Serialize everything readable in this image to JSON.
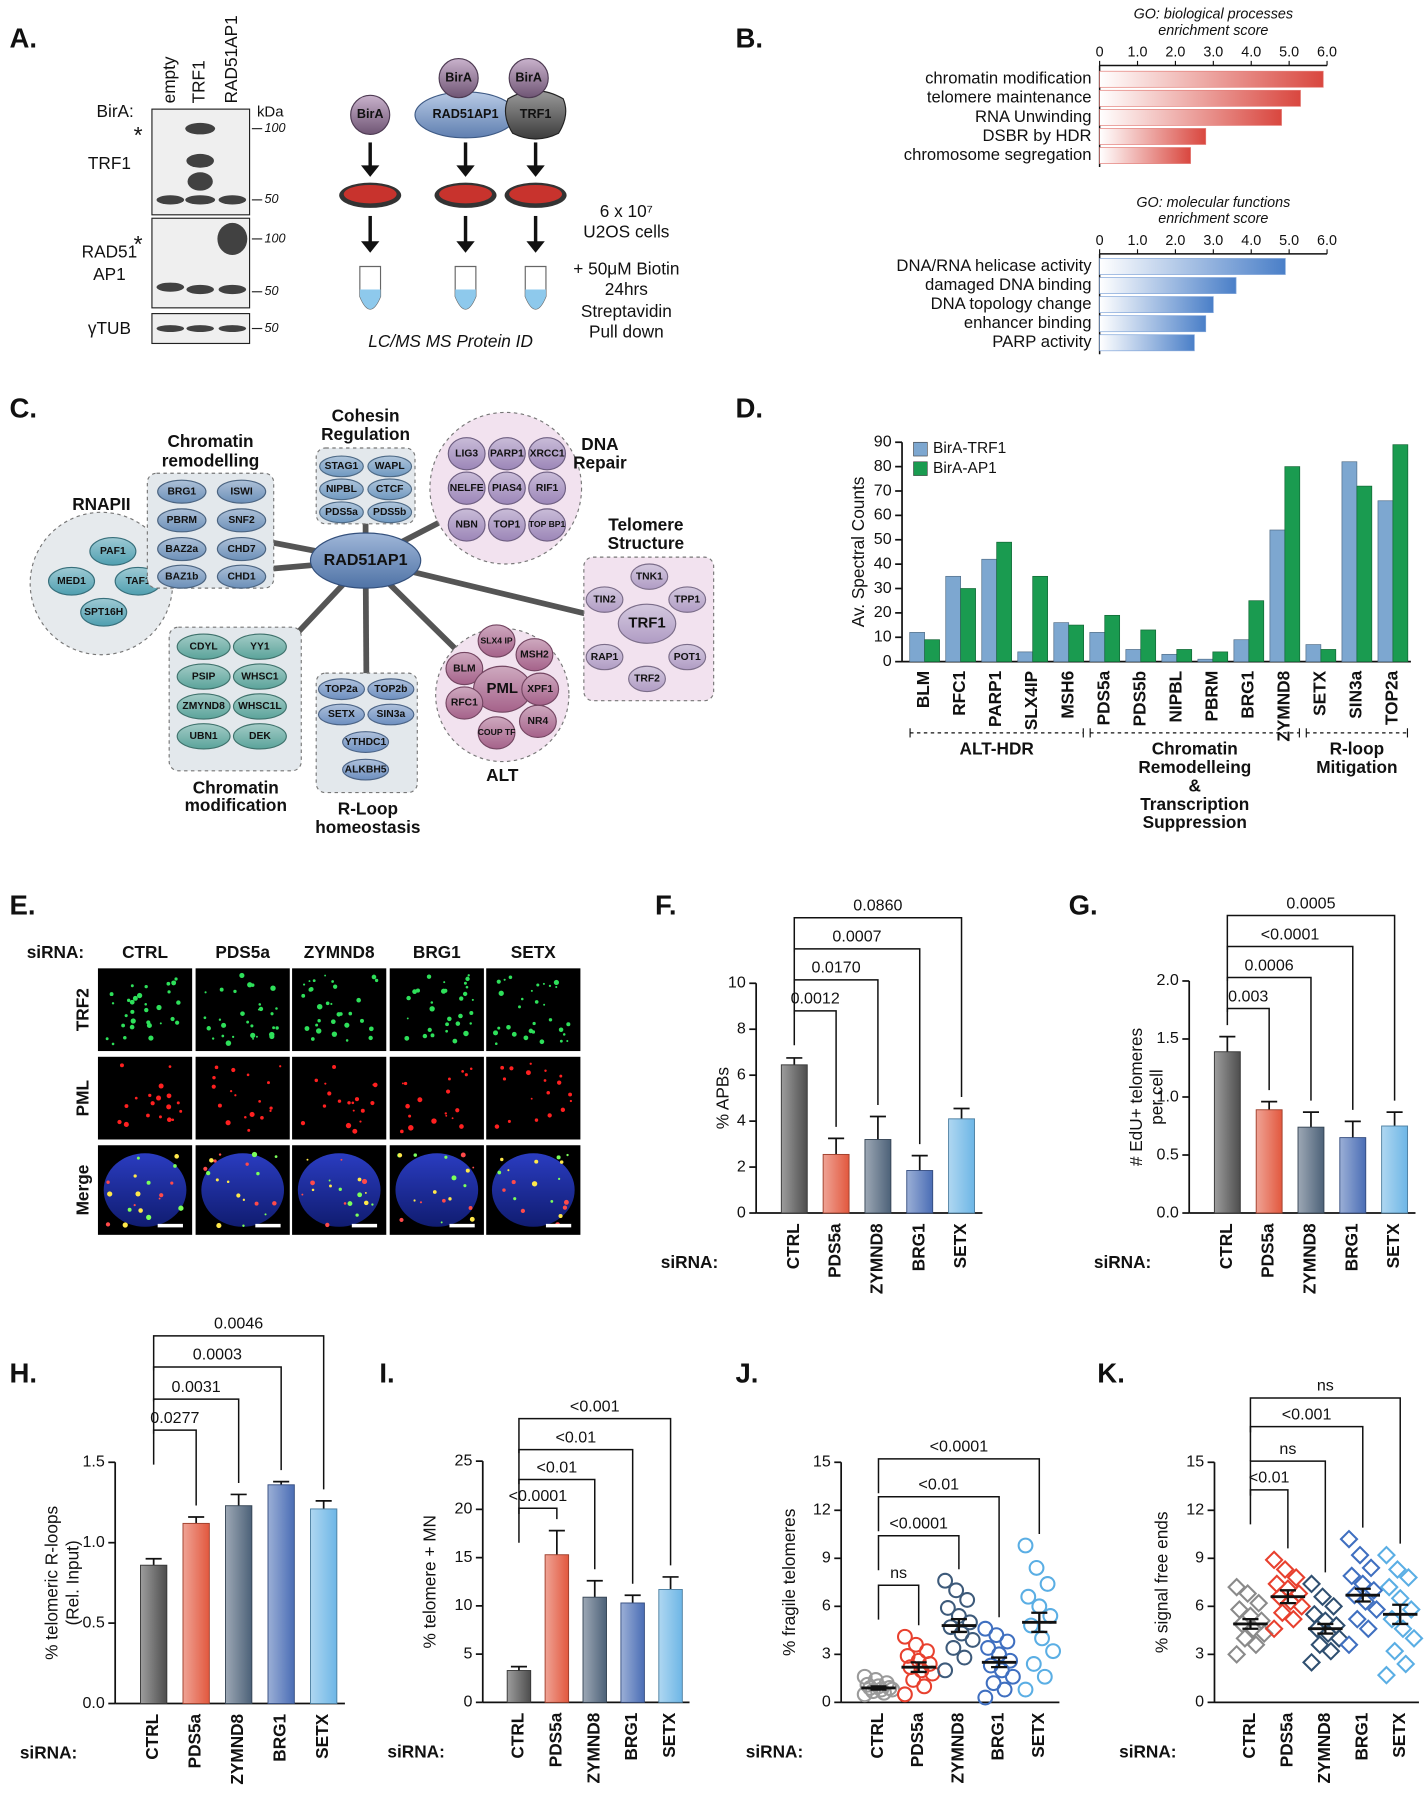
{
  "panel_labels": [
    "A.",
    "B.",
    "C.",
    "D.",
    "E.",
    "F.",
    "G.",
    "H.",
    "I.",
    "J.",
    "K."
  ],
  "blot": {
    "bait_label": "BirA:",
    "lanes": [
      "empty",
      "TRF1",
      "RAD51AP1"
    ],
    "unit": "kDa",
    "strips": [
      {
        "label": [
          "TRF1"
        ],
        "asterisk": "*",
        "markers": [
          100,
          50
        ]
      },
      {
        "label": [
          "RAD51",
          "AP1"
        ],
        "asterisk": "*",
        "markers": [
          100,
          50
        ]
      },
      {
        "label": [
          "γTUB"
        ],
        "markers": [
          50
        ]
      }
    ]
  },
  "schematic": {
    "baits": [
      {
        "tag": "BirA"
      },
      {
        "tag": "BirA",
        "fusion": "RAD51AP1"
      },
      {
        "tag": "BirA",
        "fusion": "TRF1"
      }
    ],
    "steps": [
      [
        "6 x 10⁷",
        "U2OS cells"
      ],
      [
        "+ 50μM Biotin",
        "24hrs"
      ],
      [
        "Streptavidin",
        "Pull down"
      ]
    ],
    "readout": "LC/MS MS Protein ID"
  },
  "network": {
    "center": "RAD51AP1",
    "highlight_color": "#e3262b",
    "groups": [
      {
        "title": [
          "RNAPII"
        ],
        "color": "#4f9fb0",
        "nodes": [
          {
            "label": "PAF1"
          },
          {
            "label": "MED1"
          },
          {
            "label": "TAF1"
          },
          {
            "label": "SPT16H"
          }
        ]
      },
      {
        "title": [
          "Chromatin",
          "remodelling"
        ],
        "color": "#6b8fb8",
        "nodes": [
          {
            "label": "BRG1",
            "highlight": true
          },
          {
            "label": "ISWI",
            "highlight": true
          },
          {
            "label": "PBRM",
            "highlight": true
          },
          {
            "label": "SNF2",
            "highlight": true
          },
          {
            "label": "BAZ2a",
            "highlight": true
          },
          {
            "label": "CHD7",
            "highlight": true
          },
          {
            "label": "BAZ1b",
            "highlight": true
          },
          {
            "label": "CHD1",
            "highlight": true
          }
        ]
      },
      {
        "title": [
          "Cohesin",
          "Regulation"
        ],
        "color": "#6f98c0",
        "nodes": [
          {
            "label": "STAG1"
          },
          {
            "label": "WAPL",
            "highlight": true
          },
          {
            "label": "NIPBL",
            "highlight": true
          },
          {
            "label": "CTCF",
            "highlight": true
          },
          {
            "label": "PDS5a",
            "highlight": true
          },
          {
            "label": "PDS5b",
            "highlight": true
          }
        ]
      },
      {
        "title": [
          "DNA",
          "Repair"
        ],
        "color": "#9c86b8",
        "nodes": [
          {
            "label": "LIG3"
          },
          {
            "label": "PARP1",
            "highlight": true
          },
          {
            "label": "XRCC1"
          },
          {
            "label": "NELFE",
            "highlight": true
          },
          {
            "label": "PIAS4"
          },
          {
            "label": "RIF1"
          },
          {
            "label": "NBN"
          },
          {
            "label": "TOP1"
          },
          {
            "label": "TOP BP1"
          }
        ]
      },
      {
        "title": [
          "Telomere",
          "Structure"
        ],
        "color": "#b09cc4",
        "nodes": [
          {
            "label": "TNK1"
          },
          {
            "label": "TIN2"
          },
          {
            "label": "TPP1"
          },
          {
            "label": "TRF1"
          },
          {
            "label": "RAP1"
          },
          {
            "label": "POT1"
          },
          {
            "label": "TRF2"
          }
        ]
      },
      {
        "title": [
          "Chromatin",
          "modification"
        ],
        "color": "#5aa39a",
        "nodes": [
          {
            "label": "CDYL",
            "highlight": true
          },
          {
            "label": "YY1"
          },
          {
            "label": "PSIP",
            "highlight": true
          },
          {
            "label": "WHSC1"
          },
          {
            "label": "ZMYND8",
            "highlight": true
          },
          {
            "label": "WHSC1L"
          },
          {
            "label": "UBN1"
          },
          {
            "label": "DEK"
          }
        ]
      },
      {
        "title": [
          "R-Loop",
          "homeostasis"
        ],
        "color": "#6d8fc0",
        "nodes": [
          {
            "label": "TOP2a"
          },
          {
            "label": "TOP2b"
          },
          {
            "label": "SETX",
            "highlight": true
          },
          {
            "label": "SIN3a"
          },
          {
            "label": "YTHDC1"
          },
          {
            "label": "ALKBH5"
          }
        ]
      },
      {
        "title": [
          "ALT"
        ],
        "color": "#a5628a",
        "nodes": [
          {
            "label": "SLX4 IP"
          },
          {
            "label": "MSH2"
          },
          {
            "label": "BLM"
          },
          {
            "label": "PML"
          },
          {
            "label": "XPF1"
          },
          {
            "label": "RFC1"
          },
          {
            "label": "NR4"
          },
          {
            "label": "COUP TF"
          }
        ]
      }
    ]
  },
  "imaging": {
    "prefix": "siRNA:",
    "columns": [
      "CTRL",
      "PDS5a",
      "ZYMND8",
      "BRG1",
      "SETX"
    ],
    "rows": [
      {
        "label": "TRF2",
        "color": "#1db34a"
      },
      {
        "label": "PML",
        "color": "#e8262a"
      },
      {
        "label": "Merge",
        "color": "#222222"
      }
    ]
  },
  "chart_data": [
    {
      "type": "hbar",
      "title": [
        "GO: biological processes",
        "enrichment score"
      ],
      "categories": [
        "chromatin modification",
        "telomere maintenance",
        "RNA Unwinding",
        "DSBR by HDR",
        "chromosome segregation"
      ],
      "values": [
        5.9,
        5.3,
        4.8,
        2.8,
        2.4
      ],
      "color": "#d9473f",
      "xlim": [
        0,
        6
      ],
      "xticks": [
        0,
        {
          "value": 1,
          "label": "1.0"
        },
        {
          "value": 2,
          "label": "2.0"
        },
        {
          "value": 3,
          "label": "3.0"
        },
        {
          "value": 4,
          "label": "4.0"
        },
        {
          "value": 5,
          "label": "5.0"
        },
        {
          "value": 6,
          "label": "6.0"
        }
      ]
    },
    {
      "type": "hbar",
      "title": [
        "GO: molecular functions",
        "enrichment score"
      ],
      "categories": [
        "DNA/RNA helicase activity",
        "damaged DNA binding",
        "DNA topology change",
        "enhancer binding",
        "PARP activity"
      ],
      "values": [
        4.9,
        3.6,
        3.0,
        2.8,
        2.5
      ],
      "color": "#4a7fc8",
      "xlim": [
        0,
        6
      ],
      "xticks": [
        0,
        {
          "value": 1,
          "label": "1.0"
        },
        {
          "value": 2,
          "label": "2.0"
        },
        {
          "value": 3,
          "label": "3.0"
        },
        {
          "value": 4,
          "label": "4.0"
        },
        {
          "value": 5,
          "label": "5.0"
        },
        {
          "value": 6,
          "label": "6.0"
        }
      ]
    },
    {
      "type": "grouped_bar",
      "ylabel": [
        "Av. Spectral Counts"
      ],
      "categories": [
        "BLM",
        "RFC1",
        "PARP1",
        "SLX4IP",
        "MSH6",
        "PDS5a",
        "PDS5b",
        "NIPBL",
        "PBRM",
        "BRG1",
        "ZYMND8",
        "SETX",
        "SIN3a",
        "TOP2a"
      ],
      "series": [
        {
          "name": "BirA-TRF1",
          "color": "#7da7d0",
          "values": [
            12,
            35,
            42,
            4,
            16,
            12,
            5,
            3,
            1,
            9,
            54,
            7,
            82,
            66
          ]
        },
        {
          "name": "BirA-AP1",
          "color": "#1a9b50",
          "values": [
            9,
            30,
            49,
            35,
            15,
            19,
            13,
            5,
            4,
            25,
            80,
            5,
            72,
            89
          ]
        }
      ],
      "ylim": [
        0,
        90
      ],
      "yticks": [
        0,
        10,
        20,
        30,
        40,
        50,
        60,
        70,
        80,
        90
      ],
      "legend": "top-left",
      "groups": [
        {
          "label": [
            "ALT-HDR"
          ],
          "span": [
            0,
            4
          ]
        },
        {
          "label": [
            "Chromatin",
            "Remodelleing",
            "&",
            "Transcription",
            "Suppression"
          ],
          "span": [
            5,
            10
          ]
        },
        {
          "label": [
            "R-loop",
            "Mitigation"
          ],
          "span": [
            11,
            13
          ]
        }
      ]
    },
    {
      "type": "bar",
      "ylabel": [
        "% APBs"
      ],
      "x_prefix": "siRNA:",
      "categories": [
        "CTRL",
        "PDS5a",
        "ZYMND8",
        "BRG1",
        "SETX"
      ],
      "values": [
        6.45,
        2.55,
        3.2,
        1.85,
        4.1
      ],
      "errors": [
        0.3,
        0.7,
        1.0,
        0.65,
        0.45
      ],
      "colors": [
        "#4d4d4d",
        "#e2583e",
        "#4c6178",
        "#4a6db5",
        "#6db6e6"
      ],
      "ylim": [
        0,
        10
      ],
      "yticks": [
        0,
        2,
        4,
        6,
        8,
        10
      ],
      "comparisons": [
        "0.0012",
        "0.0170",
        "0.0007",
        "0.0860"
      ]
    },
    {
      "type": "bar",
      "ylabel": [
        "# EdU+ telomeres",
        "per cell"
      ],
      "x_prefix": "siRNA:",
      "categories": [
        "CTRL",
        "PDS5a",
        "ZYMND8",
        "BRG1",
        "SETX"
      ],
      "values": [
        1.39,
        0.89,
        0.74,
        0.65,
        0.75
      ],
      "errors": [
        0.13,
        0.07,
        0.13,
        0.14,
        0.12
      ],
      "colors": [
        "#4d4d4d",
        "#e2583e",
        "#4c6178",
        "#4a6db5",
        "#6db6e6"
      ],
      "ylim": [
        0,
        2
      ],
      "yticks": [
        {
          "value": 0,
          "label": "0.0"
        },
        {
          "value": 0.5,
          "label": "0.5"
        },
        {
          "value": 1,
          "label": "1.0"
        },
        {
          "value": 1.5,
          "label": "1.5"
        },
        {
          "value": 2,
          "label": "2.0"
        }
      ],
      "comparisons": [
        "0.003",
        "0.0006",
        "<0.0001",
        "0.0005"
      ]
    },
    {
      "type": "bar",
      "ylabel": [
        "% telomeric R-loops",
        "(Rel. Input)"
      ],
      "x_prefix": "siRNA:",
      "categories": [
        "CTRL",
        "PDS5a",
        "ZYMND8",
        "BRG1",
        "SETX"
      ],
      "values": [
        0.86,
        1.12,
        1.23,
        1.36,
        1.21
      ],
      "errors": [
        0.04,
        0.04,
        0.07,
        0.02,
        0.05
      ],
      "colors": [
        "#4d4d4d",
        "#e2583e",
        "#4c6178",
        "#4a6db5",
        "#6db6e6"
      ],
      "ylim": [
        0,
        1.5
      ],
      "yticks": [
        {
          "value": 0,
          "label": "0.0"
        },
        {
          "value": 0.5,
          "label": "0.5"
        },
        {
          "value": 1,
          "label": "1.0"
        },
        {
          "value": 1.5,
          "label": "1.5"
        }
      ],
      "comparisons": [
        "0.0277",
        "0.0031",
        "0.0003",
        "0.0046"
      ]
    },
    {
      "type": "bar",
      "ylabel": [
        "% telomere + MN"
      ],
      "x_prefix": "siRNA:",
      "categories": [
        "CTRL",
        "PDS5a",
        "ZYMND8",
        "BRG1",
        "SETX"
      ],
      "values": [
        3.3,
        15.3,
        10.9,
        10.3,
        11.7
      ],
      "errors": [
        0.4,
        2.5,
        1.7,
        0.8,
        1.3
      ],
      "colors": [
        "#4d4d4d",
        "#e2583e",
        "#4c6178",
        "#4a6db5",
        "#6db6e6"
      ],
      "ylim": [
        0,
        25
      ],
      "yticks": [
        0,
        5,
        10,
        15,
        20,
        25
      ],
      "comparisons": [
        "<0.0001",
        "<0.01",
        "<0.01",
        "<0.001"
      ]
    },
    {
      "type": "dot",
      "marker": "circle",
      "ylabel": [
        "% fragile telomeres"
      ],
      "x_prefix": "siRNA:",
      "categories": [
        "CTRL",
        "PDS5a",
        "ZYMND8",
        "BRG1",
        "SETX"
      ],
      "colors": [
        "#9a9a9a",
        "#e8402e",
        "#3d5a7a",
        "#3f6fc0",
        "#5aaee4"
      ],
      "points": [
        [
          0.5,
          0.6,
          0.7,
          0.8,
          0.8,
          0.9,
          0.9,
          1.0,
          1.1,
          1.2,
          1.4,
          1.6
        ],
        [
          0.5,
          1.0,
          1.4,
          1.8,
          2.0,
          2.2,
          2.4,
          2.6,
          2.9,
          3.2,
          3.6,
          4.1
        ],
        [
          2.0,
          2.8,
          3.4,
          3.9,
          4.3,
          4.7,
          5.0,
          5.4,
          5.9,
          6.4,
          7.0,
          7.6
        ],
        [
          0.3,
          0.8,
          1.2,
          1.6,
          2.0,
          2.3,
          2.6,
          3.0,
          3.4,
          3.8,
          4.2,
          4.6
        ],
        [
          0.8,
          1.6,
          2.4,
          3.2,
          4.0,
          4.8,
          5.4,
          6.0,
          6.6,
          7.4,
          8.4,
          9.8
        ]
      ],
      "means": [
        0.9,
        2.2,
        4.8,
        2.5,
        5.0
      ],
      "errors": [
        0.1,
        0.3,
        0.4,
        0.3,
        0.6
      ],
      "ylim": [
        0,
        15
      ],
      "yticks": [
        0,
        3,
        6,
        9,
        12,
        15
      ],
      "comparisons": [
        "ns",
        "<0.0001",
        "<0.01",
        "<0.0001"
      ]
    },
    {
      "type": "dot",
      "marker": "diamond",
      "ylabel": [
        "% signal free ends"
      ],
      "x_prefix": "siRNA:",
      "categories": [
        "CTRL",
        "PDS5a",
        "ZYMND8",
        "BRG1",
        "SETX"
      ],
      "colors": [
        "#8a8a8a",
        "#e8402e",
        "#2f4f70",
        "#3f6fc0",
        "#5aaee4"
      ],
      "points": [
        [
          3.0,
          3.6,
          4.0,
          4.3,
          4.6,
          4.9,
          5.1,
          5.4,
          5.8,
          6.2,
          6.8,
          7.2
        ],
        [
          4.6,
          5.2,
          5.6,
          6.0,
          6.3,
          6.6,
          6.8,
          7.1,
          7.4,
          7.8,
          8.3,
          8.9
        ],
        [
          2.5,
          3.2,
          3.6,
          4.0,
          4.3,
          4.6,
          4.8,
          5.1,
          5.5,
          6.0,
          6.6,
          7.4
        ],
        [
          3.6,
          4.6,
          5.2,
          5.8,
          6.3,
          6.7,
          7.0,
          7.4,
          7.9,
          8.4,
          9.2,
          10.2
        ],
        [
          1.7,
          2.4,
          3.2,
          4.0,
          4.6,
          5.2,
          5.8,
          6.5,
          7.2,
          7.8,
          8.3,
          9.2
        ]
      ],
      "means": [
        4.9,
        6.6,
        4.6,
        6.7,
        5.5
      ],
      "errors": [
        0.3,
        0.4,
        0.3,
        0.4,
        0.6
      ],
      "ylim": [
        0,
        15
      ],
      "yticks": [
        0,
        3,
        6,
        9,
        12,
        15
      ],
      "comparisons": [
        "<0.01",
        "ns",
        "<0.001",
        "ns"
      ]
    }
  ]
}
